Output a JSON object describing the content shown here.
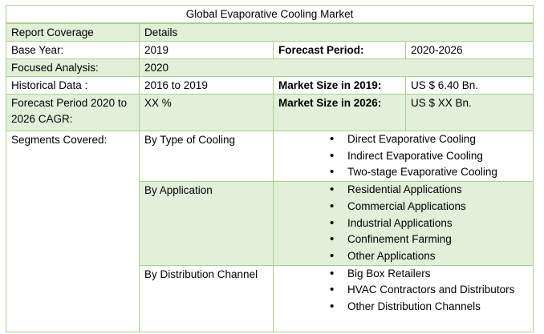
{
  "table": {
    "title": "Global Evaporative Cooling Market",
    "header": [
      "Report Coverage",
      "Details"
    ],
    "rows": [
      [
        "Base Year:",
        "2019",
        "Forecast Period:",
        "2020-2026"
      ],
      [
        "Focused Analysis:",
        "2020"
      ],
      [
        "Historical Data :",
        "2016 to 2019",
        "Market Size in 2019:",
        "US $ 6.40 Bn."
      ],
      [
        "Forecast Period 2020 to 2026 CAGR:",
        "XX %",
        "Market Size in 2026:",
        "US $ XX Bn."
      ]
    ],
    "segments": {
      "label": "Segments Covered:",
      "groups": [
        {
          "name": "By Type of Cooling",
          "items": [
            "Direct Evaporative Cooling",
            "Indirect Evaporative Cooling",
            "Two-stage Evaporative Cooling"
          ]
        },
        {
          "name": "By Application",
          "items": [
            "Residential Applications",
            "Commercial Applications",
            "Industrial Applications",
            "Confinement Farming",
            "Other Applications"
          ]
        },
        {
          "name": "By Distribution Channel",
          "items": [
            "Big Box Retailers",
            "HVAC Contractors and Distributors",
            "Other Distribution Channels"
          ]
        }
      ]
    }
  }
}
